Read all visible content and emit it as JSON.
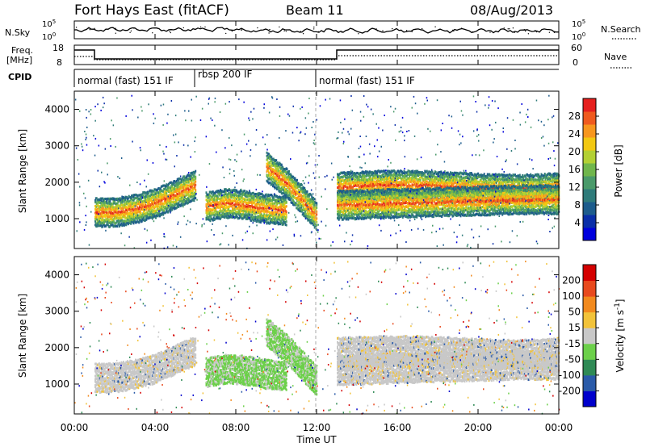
{
  "header": {
    "station": "Fort Hays East (fitACF)",
    "beam": "Beam 11",
    "date": "08/Aug/2013"
  },
  "side_labels": {
    "nsky": "N.Sky",
    "nsearch": "N.Search",
    "freq_line1": "Freq.",
    "freq_line2": "[MHz]",
    "nave": "Nave",
    "cpid": "CPID"
  },
  "panels": {
    "noise": {
      "left_ticks": [
        "10^5",
        "10^0"
      ],
      "right_ticks": [
        "10^5",
        "10^0"
      ]
    },
    "freq": {
      "left_ticks": [
        "18",
        "8"
      ],
      "right_ticks": [
        "60",
        "0"
      ]
    },
    "cpid_segments": [
      {
        "start": 0,
        "end": 6,
        "label": "normal (fast) 151 IF"
      },
      {
        "start": 6,
        "end": 12,
        "label": "rbsp 200 IF"
      },
      {
        "start": 12,
        "end": 24,
        "label": "normal (fast) 151 IF"
      }
    ]
  },
  "chart_data": [
    {
      "type": "heatmap",
      "name": "power",
      "ylabel": "Slant Range [km]",
      "ylim": [
        180,
        4500
      ],
      "xlim": [
        0,
        24
      ],
      "y_ticks": [
        "4000",
        "3000",
        "2000",
        "1000"
      ],
      "y_tick_values": [
        4000,
        3000,
        2000,
        1000
      ],
      "colorbar": {
        "label": "Power [dB]",
        "ticks": [
          "28",
          "24",
          "20",
          "16",
          "12",
          "8",
          "4"
        ],
        "colors": [
          "#0000dd",
          "#0a2ea8",
          "#1d5c8c",
          "#2f7b7a",
          "#4a9a6a",
          "#70b64c",
          "#b3d034",
          "#f2c812",
          "#f7961e",
          "#ef5a1e",
          "#e5201e"
        ]
      },
      "echo_bands": [
        {
          "t": [
            1.0,
            2.0,
            3.0,
            4.0,
            5.0,
            6.0
          ],
          "range": [
            1200,
            1200,
            1300,
            1450,
            1700,
            1950
          ]
        },
        {
          "t": [
            6.5,
            7.5,
            8.5,
            9.5,
            10.5
          ],
          "range": [
            1350,
            1450,
            1400,
            1300,
            1250
          ]
        },
        {
          "t": [
            9.5,
            10.5,
            11.5,
            12.0
          ],
          "range": [
            2450,
            2000,
            1400,
            1100
          ]
        },
        {
          "t": [
            13.0,
            15.0,
            17.0,
            19.0,
            21.0,
            23.0,
            24.0
          ],
          "range": [
            1900,
            1950,
            1950,
            1900,
            1850,
            1850,
            1900
          ]
        },
        {
          "t": [
            13.0,
            16.0,
            19.0,
            22.0,
            24.0
          ],
          "range": [
            1400,
            1450,
            1500,
            1550,
            1550
          ]
        }
      ]
    },
    {
      "type": "heatmap",
      "name": "velocity",
      "ylabel": "Slant Range [km]",
      "ylim": [
        180,
        4500
      ],
      "xlim": [
        0,
        24
      ],
      "y_ticks": [
        "4000",
        "3000",
        "2000",
        "1000"
      ],
      "y_tick_values": [
        4000,
        3000,
        2000,
        1000
      ],
      "colorbar": {
        "label": "Velocity [m s^-1]",
        "ticks": [
          "200",
          "100",
          "50",
          "15",
          "-15",
          "-50",
          "-100",
          "-200"
        ],
        "colors": [
          "#0000cc",
          "#2a5aa8",
          "#2f8a55",
          "#6cd04a",
          "#c8c8c8",
          "#f2c33a",
          "#f28a1e",
          "#e84a1e",
          "#d40000"
        ]
      }
    }
  ],
  "x_axis": {
    "label": "Time UT",
    "ticks": [
      "00:00",
      "04:00",
      "08:00",
      "12:00",
      "16:00",
      "20:00",
      "00:00"
    ],
    "tick_values": [
      0,
      4,
      8,
      12,
      16,
      20,
      24
    ]
  }
}
